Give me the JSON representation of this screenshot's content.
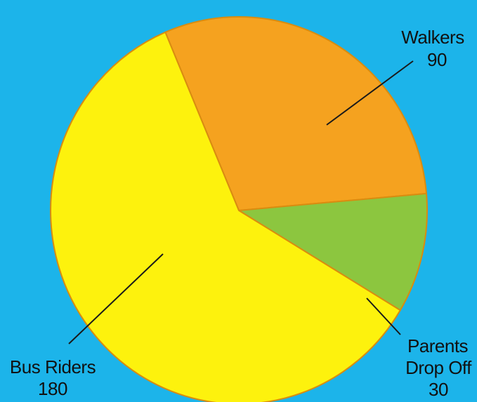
{
  "chart_data": {
    "type": "pie",
    "title": "",
    "slices": [
      {
        "label": "Walkers",
        "value": 90,
        "value_text": "90",
        "color": "#f5a21f"
      },
      {
        "label": "Parents Drop Off",
        "label_lines": [
          "Parents",
          "Drop Off"
        ],
        "value": 30,
        "value_text": "30",
        "color": "#8cc63f"
      },
      {
        "label": "Bus Riders",
        "value": 180,
        "value_text": "180",
        "color": "#fdf20d"
      }
    ],
    "background": "#1cb4ea",
    "edge_color": "#d98c10",
    "legend": "none"
  }
}
